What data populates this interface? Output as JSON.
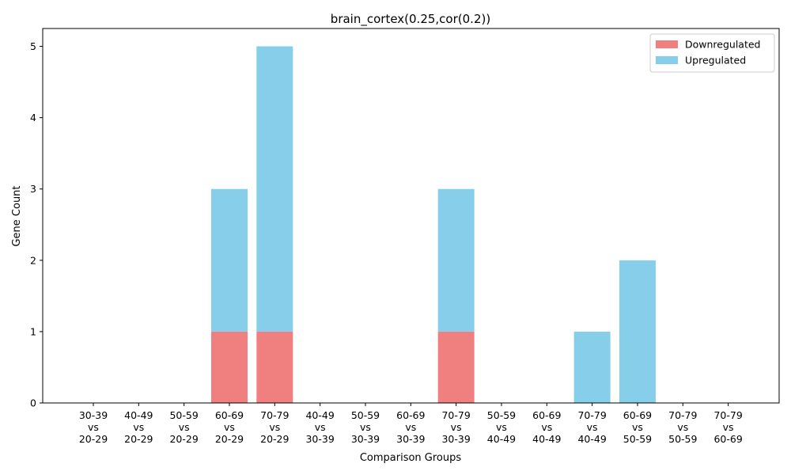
{
  "chart_data": {
    "type": "bar",
    "stacked": true,
    "title": "brain_cortex(0.25,cor(0.2))",
    "xlabel": "Comparison Groups",
    "ylabel": "Gene Count",
    "ylim": [
      0,
      5.25
    ],
    "yticks": [
      0,
      1,
      2,
      3,
      4,
      5
    ],
    "grid": false,
    "legend_position": "top-right",
    "categories": [
      [
        "30-39",
        "vs",
        "20-29"
      ],
      [
        "40-49",
        "vs",
        "20-29"
      ],
      [
        "50-59",
        "vs",
        "20-29"
      ],
      [
        "60-69",
        "vs",
        "20-29"
      ],
      [
        "70-79",
        "vs",
        "20-29"
      ],
      [
        "40-49",
        "vs",
        "30-39"
      ],
      [
        "50-59",
        "vs",
        "30-39"
      ],
      [
        "60-69",
        "vs",
        "30-39"
      ],
      [
        "70-79",
        "vs",
        "30-39"
      ],
      [
        "50-59",
        "vs",
        "40-49"
      ],
      [
        "60-69",
        "vs",
        "40-49"
      ],
      [
        "70-79",
        "vs",
        "40-49"
      ],
      [
        "60-69",
        "vs",
        "50-59"
      ],
      [
        "70-79",
        "vs",
        "50-59"
      ],
      [
        "70-79",
        "vs",
        "60-69"
      ]
    ],
    "series": [
      {
        "name": "Downregulated",
        "color": "#f08080",
        "values": [
          0,
          0,
          0,
          1,
          1,
          0,
          0,
          0,
          1,
          0,
          0,
          0,
          0,
          0,
          0
        ]
      },
      {
        "name": "Upregulated",
        "color": "#87ceeb",
        "values": [
          0,
          0,
          0,
          2,
          4,
          0,
          0,
          0,
          2,
          0,
          0,
          1,
          2,
          0,
          0
        ]
      }
    ]
  }
}
